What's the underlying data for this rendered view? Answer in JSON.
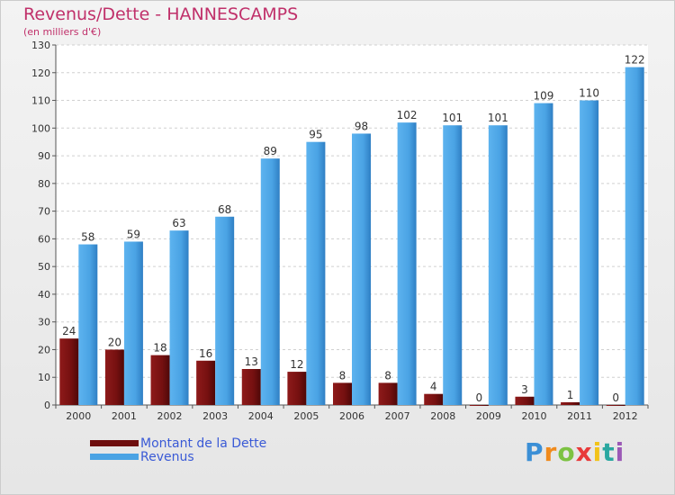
{
  "chart_data": {
    "type": "bar",
    "title": "Revenus/Dette - HANNESCAMPS",
    "subtitle": "(en milliers d'€)",
    "categories": [
      "2000",
      "2001",
      "2002",
      "2003",
      "2004",
      "2005",
      "2006",
      "2007",
      "2008",
      "2009",
      "2010",
      "2011",
      "2012"
    ],
    "series": [
      {
        "name": "Montant de la Dette",
        "color": "#7a1010",
        "values": [
          24,
          20,
          18,
          16,
          13,
          12,
          8,
          8,
          4,
          0,
          3,
          1,
          0
        ]
      },
      {
        "name": "Revenus",
        "color": "#4aa3e4",
        "values": [
          58,
          59,
          63,
          68,
          89,
          95,
          98,
          102,
          101,
          101,
          109,
          110,
          122
        ]
      }
    ],
    "ylim": [
      0,
      130
    ],
    "yticks": [
      0,
      10,
      20,
      30,
      40,
      50,
      60,
      70,
      80,
      90,
      100,
      110,
      120,
      130
    ],
    "grid": true,
    "legend_position": "bottom-left"
  },
  "logo": {
    "letters": [
      "P",
      "r",
      "o",
      "x",
      "i",
      "t",
      "i"
    ],
    "colors": [
      "#3b8fd6",
      "#f08a1c",
      "#7cc242",
      "#e83a3a",
      "#f2c319",
      "#2aa7a0",
      "#9b59b6"
    ]
  }
}
